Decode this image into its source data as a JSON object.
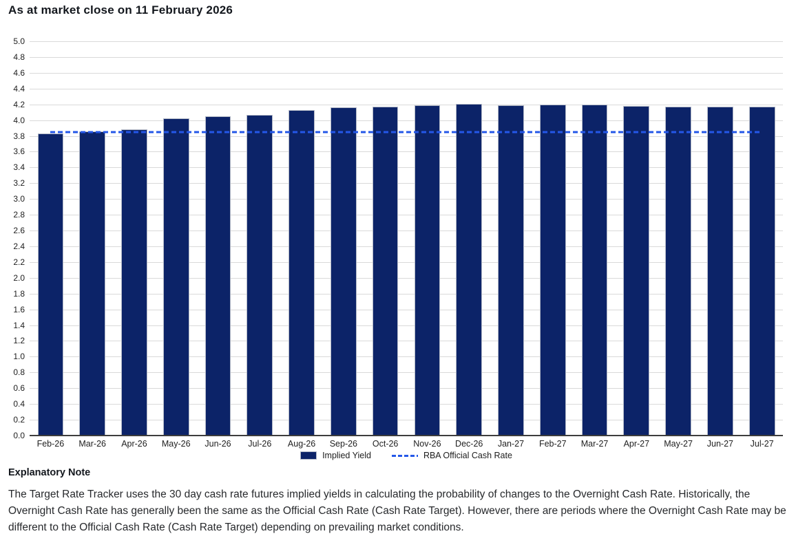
{
  "header": {
    "title": "As at market close on 11 February 2026"
  },
  "chart_data": {
    "type": "bar",
    "categories": [
      "Feb-26",
      "Mar-26",
      "Apr-26",
      "May-26",
      "Jun-26",
      "Jul-26",
      "Aug-26",
      "Sep-26",
      "Oct-26",
      "Nov-26",
      "Dec-26",
      "Jan-27",
      "Feb-27",
      "Mar-27",
      "Apr-27",
      "May-27",
      "Jun-27",
      "Jul-27"
    ],
    "series": [
      {
        "name": "Implied Yield",
        "type": "bar",
        "color": "#0c2368",
        "values": [
          3.83,
          3.86,
          3.88,
          4.02,
          4.05,
          4.07,
          4.13,
          4.16,
          4.17,
          4.19,
          4.21,
          4.19,
          4.2,
          4.2,
          4.18,
          4.17,
          4.17,
          4.17
        ]
      },
      {
        "name": "RBA Official Cash Rate",
        "type": "dashed-line",
        "color": "#2457e8",
        "value": 3.85
      }
    ],
    "ylim": [
      0.0,
      5.0
    ],
    "ytick_step": 0.2,
    "ytick_decimals": 1,
    "grid": true,
    "legend_position": "bottom"
  },
  "footer": {
    "heading": "Explanatory Note",
    "paragraph": "The Target Rate Tracker uses the 30 day cash rate futures implied yields in calculating the probability of changes to the Overnight Cash Rate. Historically, the Overnight Cash Rate has generally been the same as the Official Cash Rate (Cash Rate Target). However, there are periods where the Overnight Cash Rate may be different to the Official Cash Rate (Cash Rate Target) depending on prevailing market conditions.",
    "colors": {
      "bar_fill": "#0c2368",
      "bar_border": "#b2b8c6",
      "cash_rate_line": "#2457e8",
      "gridline": "#d9d9d9",
      "axis_line": "#3d3d3d"
    }
  }
}
